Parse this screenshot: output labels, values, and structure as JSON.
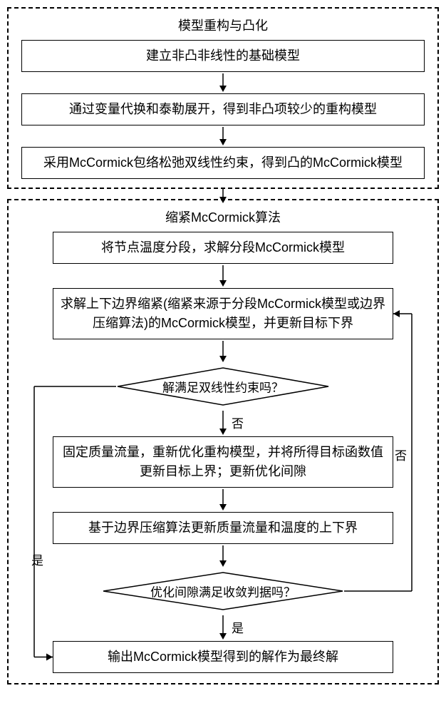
{
  "section1": {
    "title": "模型重构与凸化",
    "box1": "建立非凸非线性的基础模型",
    "box2": "通过变量代换和泰勒展开，得到非凸项较少的重构模型",
    "box3": "采用McCormick包络松弛双线性约束，得到凸的McCormick模型"
  },
  "section2": {
    "title": "缩紧McCormick算法",
    "box1": "将节点温度分段，求解分段McCormick模型",
    "box2": "求解上下边界缩紧(缩紧来源于分段McCormick模型或边界压缩算法)的McCormick模型，并更新目标下界",
    "diamond1": "解满足双线性约束吗？",
    "box3": "固定质量流量，重新优化重构模型，并将所得目标函数值更新目标上界；更新优化间隙",
    "box4": "基于边界压缩算法更新质量流量和温度的上下界",
    "diamond2": "优化间隙满足收敛判据吗？",
    "box5": "输出McCormick模型得到的解作为最终解",
    "label_yes": "是",
    "label_no": "否"
  },
  "style": {
    "border_color": "#000000",
    "background": "#ffffff",
    "font_size_box": 18,
    "font_size_label": 17,
    "dash_pattern": "6,4",
    "arrow": {
      "width": 14,
      "height": 26,
      "stroke": "#000000",
      "stroke_width": 1.5
    }
  }
}
